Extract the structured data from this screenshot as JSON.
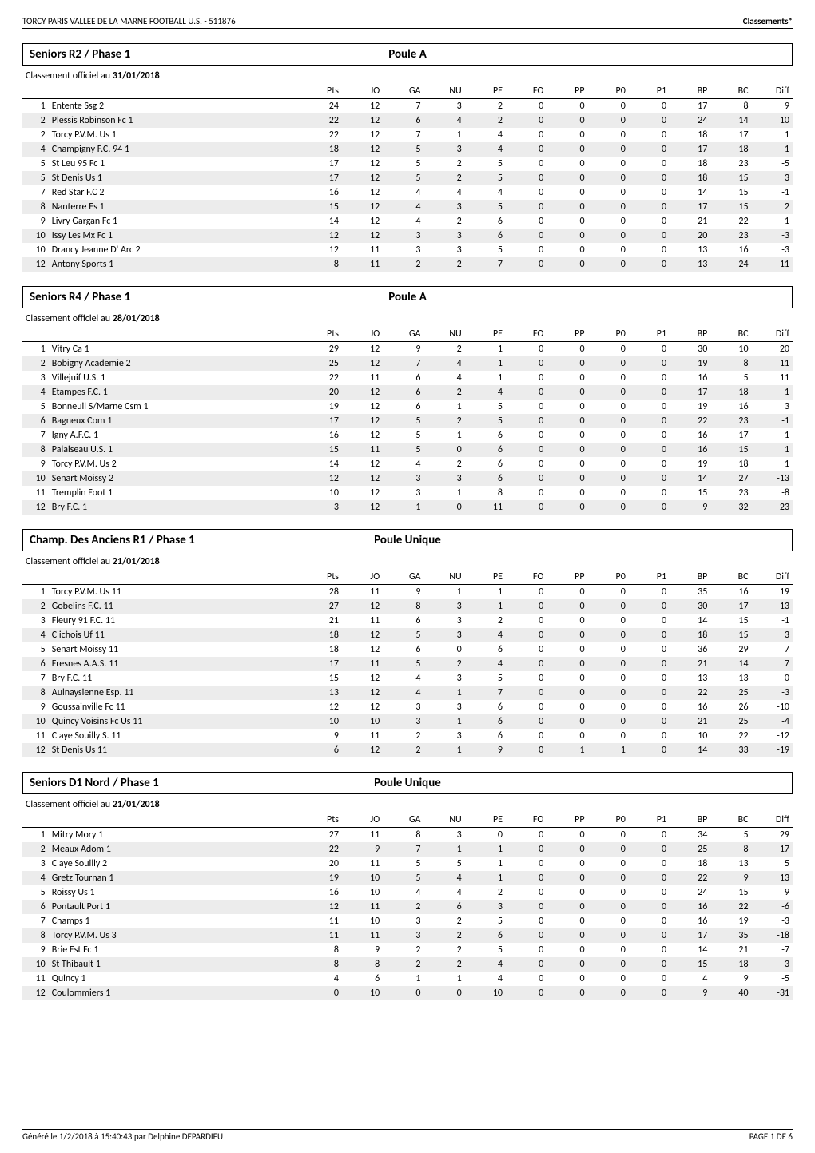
{
  "header": {
    "left": "TORCY PARIS VALLEE DE LA MARNE FOOTBALL U.S. - 511876",
    "right": "Classements*"
  },
  "footer": {
    "left": "Généré le 1/2/2018 à 15:40:43 par Delphine DEPARDIEU",
    "right": "PAGE 1 DE 6"
  },
  "columns": [
    "Pts",
    "JO",
    "GA",
    "NU",
    "PE",
    "FO",
    "PP",
    "P0",
    "P1",
    "BP",
    "BC",
    "Diff"
  ],
  "classement_label_prefix": "Classement officiel au ",
  "sections": [
    {
      "title": "Seniors R2 / Phase 1",
      "poule": "Poule A",
      "date": "31/01/2018",
      "rows": [
        {
          "rank": 1,
          "team": "Entente Ssg 2",
          "vals": [
            24,
            12,
            7,
            3,
            2,
            0,
            0,
            0,
            0,
            17,
            8,
            9
          ]
        },
        {
          "rank": 2,
          "team": "Plessis Robinson Fc 1",
          "vals": [
            22,
            12,
            6,
            4,
            2,
            0,
            0,
            0,
            0,
            24,
            14,
            10
          ]
        },
        {
          "rank": 2,
          "team": "Torcy P.V.M. Us 1",
          "vals": [
            22,
            12,
            7,
            1,
            4,
            0,
            0,
            0,
            0,
            18,
            17,
            1
          ]
        },
        {
          "rank": 4,
          "team": "Champigny F.C. 94 1",
          "vals": [
            18,
            12,
            5,
            3,
            4,
            0,
            0,
            0,
            0,
            17,
            18,
            -1
          ]
        },
        {
          "rank": 5,
          "team": "St Leu 95 Fc 1",
          "vals": [
            17,
            12,
            5,
            2,
            5,
            0,
            0,
            0,
            0,
            18,
            23,
            -5
          ]
        },
        {
          "rank": 5,
          "team": "St Denis Us 1",
          "vals": [
            17,
            12,
            5,
            2,
            5,
            0,
            0,
            0,
            0,
            18,
            15,
            3
          ]
        },
        {
          "rank": 7,
          "team": "Red Star F.C 2",
          "vals": [
            16,
            12,
            4,
            4,
            4,
            0,
            0,
            0,
            0,
            14,
            15,
            -1
          ]
        },
        {
          "rank": 8,
          "team": "Nanterre Es 1",
          "vals": [
            15,
            12,
            4,
            3,
            5,
            0,
            0,
            0,
            0,
            17,
            15,
            2
          ]
        },
        {
          "rank": 9,
          "team": "Livry Gargan Fc 1",
          "vals": [
            14,
            12,
            4,
            2,
            6,
            0,
            0,
            0,
            0,
            21,
            22,
            -1
          ]
        },
        {
          "rank": 10,
          "team": "Issy Les Mx Fc 1",
          "vals": [
            12,
            12,
            3,
            3,
            6,
            0,
            0,
            0,
            0,
            20,
            23,
            -3
          ]
        },
        {
          "rank": 10,
          "team": "Drancy Jeanne D' Arc 2",
          "vals": [
            12,
            11,
            3,
            3,
            5,
            0,
            0,
            0,
            0,
            13,
            16,
            -3
          ]
        },
        {
          "rank": 12,
          "team": "Antony Sports 1",
          "vals": [
            8,
            11,
            2,
            2,
            7,
            0,
            0,
            0,
            0,
            13,
            24,
            -11
          ]
        }
      ]
    },
    {
      "title": "Seniors R4 / Phase 1",
      "poule": "Poule A",
      "date": "28/01/2018",
      "rows": [
        {
          "rank": 1,
          "team": "Vitry Ca 1",
          "vals": [
            29,
            12,
            9,
            2,
            1,
            0,
            0,
            0,
            0,
            30,
            10,
            20
          ]
        },
        {
          "rank": 2,
          "team": "Bobigny Academie 2",
          "vals": [
            25,
            12,
            7,
            4,
            1,
            0,
            0,
            0,
            0,
            19,
            8,
            11
          ]
        },
        {
          "rank": 3,
          "team": "Villejuif U.S. 1",
          "vals": [
            22,
            11,
            6,
            4,
            1,
            0,
            0,
            0,
            0,
            16,
            5,
            11
          ]
        },
        {
          "rank": 4,
          "team": "Etampes F.C. 1",
          "vals": [
            20,
            12,
            6,
            2,
            4,
            0,
            0,
            0,
            0,
            17,
            18,
            -1
          ]
        },
        {
          "rank": 5,
          "team": "Bonneuil S/Marne Csm 1",
          "vals": [
            19,
            12,
            6,
            1,
            5,
            0,
            0,
            0,
            0,
            19,
            16,
            3
          ]
        },
        {
          "rank": 6,
          "team": "Bagneux Com 1",
          "vals": [
            17,
            12,
            5,
            2,
            5,
            0,
            0,
            0,
            0,
            22,
            23,
            -1
          ]
        },
        {
          "rank": 7,
          "team": "Igny A.F.C. 1",
          "vals": [
            16,
            12,
            5,
            1,
            6,
            0,
            0,
            0,
            0,
            16,
            17,
            -1
          ]
        },
        {
          "rank": 8,
          "team": "Palaiseau U.S. 1",
          "vals": [
            15,
            11,
            5,
            0,
            6,
            0,
            0,
            0,
            0,
            16,
            15,
            1
          ]
        },
        {
          "rank": 9,
          "team": "Torcy P.V.M. Us 2",
          "vals": [
            14,
            12,
            4,
            2,
            6,
            0,
            0,
            0,
            0,
            19,
            18,
            1
          ]
        },
        {
          "rank": 10,
          "team": "Senart Moissy 2",
          "vals": [
            12,
            12,
            3,
            3,
            6,
            0,
            0,
            0,
            0,
            14,
            27,
            -13
          ]
        },
        {
          "rank": 11,
          "team": "Tremplin Foot 1",
          "vals": [
            10,
            12,
            3,
            1,
            8,
            0,
            0,
            0,
            0,
            15,
            23,
            -8
          ]
        },
        {
          "rank": 12,
          "team": "Bry F.C. 1",
          "vals": [
            3,
            12,
            1,
            0,
            11,
            0,
            0,
            0,
            0,
            9,
            32,
            -23
          ]
        }
      ]
    },
    {
      "title": "Champ. Des Anciens R1 / Phase 1",
      "poule": "Poule Unique",
      "date": "21/01/2018",
      "rows": [
        {
          "rank": 1,
          "team": "Torcy P.V.M. Us 11",
          "vals": [
            28,
            11,
            9,
            1,
            1,
            0,
            0,
            0,
            0,
            35,
            16,
            19
          ]
        },
        {
          "rank": 2,
          "team": "Gobelins F.C. 11",
          "vals": [
            27,
            12,
            8,
            3,
            1,
            0,
            0,
            0,
            0,
            30,
            17,
            13
          ]
        },
        {
          "rank": 3,
          "team": "Fleury 91 F.C. 11",
          "vals": [
            21,
            11,
            6,
            3,
            2,
            0,
            0,
            0,
            0,
            14,
            15,
            -1
          ]
        },
        {
          "rank": 4,
          "team": "Clichois Uf 11",
          "vals": [
            18,
            12,
            5,
            3,
            4,
            0,
            0,
            0,
            0,
            18,
            15,
            3
          ]
        },
        {
          "rank": 5,
          "team": "Senart Moissy 11",
          "vals": [
            18,
            12,
            6,
            0,
            6,
            0,
            0,
            0,
            0,
            36,
            29,
            7
          ]
        },
        {
          "rank": 6,
          "team": "Fresnes A.A.S. 11",
          "vals": [
            17,
            11,
            5,
            2,
            4,
            0,
            0,
            0,
            0,
            21,
            14,
            7
          ]
        },
        {
          "rank": 7,
          "team": "Bry F.C. 11",
          "vals": [
            15,
            12,
            4,
            3,
            5,
            0,
            0,
            0,
            0,
            13,
            13,
            0
          ]
        },
        {
          "rank": 8,
          "team": "Aulnaysienne Esp. 11",
          "vals": [
            13,
            12,
            4,
            1,
            7,
            0,
            0,
            0,
            0,
            22,
            25,
            -3
          ]
        },
        {
          "rank": 9,
          "team": "Goussainville Fc 11",
          "vals": [
            12,
            12,
            3,
            3,
            6,
            0,
            0,
            0,
            0,
            16,
            26,
            -10
          ]
        },
        {
          "rank": 10,
          "team": "Quincy Voisins Fc Us 11",
          "vals": [
            10,
            10,
            3,
            1,
            6,
            0,
            0,
            0,
            0,
            21,
            25,
            -4
          ]
        },
        {
          "rank": 11,
          "team": "Claye Souilly S. 11",
          "vals": [
            9,
            11,
            2,
            3,
            6,
            0,
            0,
            0,
            0,
            10,
            22,
            -12
          ]
        },
        {
          "rank": 12,
          "team": "St Denis Us 11",
          "vals": [
            6,
            12,
            2,
            1,
            9,
            0,
            1,
            1,
            0,
            14,
            33,
            -19
          ]
        }
      ]
    },
    {
      "title": "Seniors D1 Nord / Phase 1",
      "poule": "Poule Unique",
      "date": "21/01/2018",
      "rows": [
        {
          "rank": 1,
          "team": "Mitry Mory 1",
          "vals": [
            27,
            11,
            8,
            3,
            0,
            0,
            0,
            0,
            0,
            34,
            5,
            29
          ]
        },
        {
          "rank": 2,
          "team": "Meaux Adom 1",
          "vals": [
            22,
            9,
            7,
            1,
            1,
            0,
            0,
            0,
            0,
            25,
            8,
            17
          ]
        },
        {
          "rank": 3,
          "team": "Claye Souilly 2",
          "vals": [
            20,
            11,
            5,
            5,
            1,
            0,
            0,
            0,
            0,
            18,
            13,
            5
          ]
        },
        {
          "rank": 4,
          "team": "Gretz Tournan 1",
          "vals": [
            19,
            10,
            5,
            4,
            1,
            0,
            0,
            0,
            0,
            22,
            9,
            13
          ]
        },
        {
          "rank": 5,
          "team": "Roissy Us 1",
          "vals": [
            16,
            10,
            4,
            4,
            2,
            0,
            0,
            0,
            0,
            24,
            15,
            9
          ]
        },
        {
          "rank": 6,
          "team": "Pontault Port 1",
          "vals": [
            12,
            11,
            2,
            6,
            3,
            0,
            0,
            0,
            0,
            16,
            22,
            -6
          ]
        },
        {
          "rank": 7,
          "team": "Champs 1",
          "vals": [
            11,
            10,
            3,
            2,
            5,
            0,
            0,
            0,
            0,
            16,
            19,
            -3
          ]
        },
        {
          "rank": 8,
          "team": "Torcy P.V.M. Us 3",
          "vals": [
            11,
            11,
            3,
            2,
            6,
            0,
            0,
            0,
            0,
            17,
            35,
            -18
          ]
        },
        {
          "rank": 9,
          "team": "Brie Est Fc 1",
          "vals": [
            8,
            9,
            2,
            2,
            5,
            0,
            0,
            0,
            0,
            14,
            21,
            -7
          ]
        },
        {
          "rank": 10,
          "team": "St Thibault 1",
          "vals": [
            8,
            8,
            2,
            2,
            4,
            0,
            0,
            0,
            0,
            15,
            18,
            -3
          ]
        },
        {
          "rank": 11,
          "team": "Quincy 1",
          "vals": [
            4,
            6,
            1,
            1,
            4,
            0,
            0,
            0,
            0,
            4,
            9,
            -5
          ]
        },
        {
          "rank": 12,
          "team": "Coulommiers 1",
          "vals": [
            0,
            10,
            0,
            0,
            10,
            0,
            0,
            0,
            0,
            9,
            40,
            -31
          ]
        }
      ]
    }
  ],
  "colors": {
    "zebra_even": "#ececec",
    "zebra_odd": "#ffffff",
    "border": "#000000"
  }
}
